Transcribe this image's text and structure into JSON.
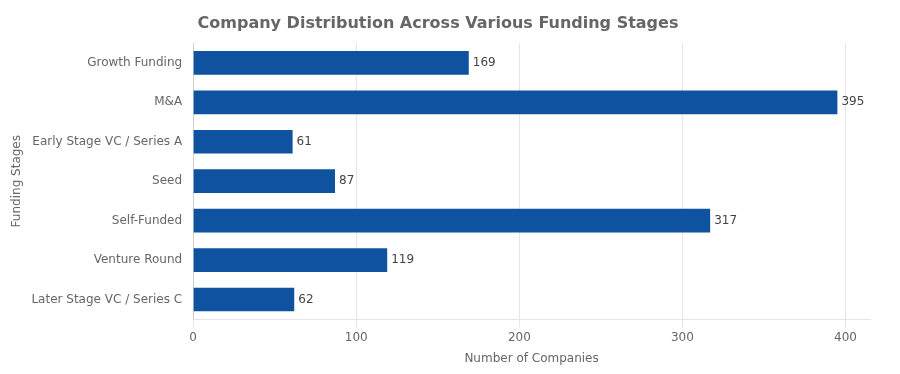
{
  "chart_data": {
    "type": "bar",
    "orientation": "horizontal",
    "title": "Company Distribution Across Various Funding Stages",
    "xlabel": "Number of Companies",
    "ylabel": "Funding Stages",
    "categories": [
      "Growth Funding",
      "M&A",
      "Early Stage VC / Series A",
      "Seed",
      "Self-Funded",
      "Venture Round",
      "Later Stage VC / Series C"
    ],
    "values": [
      169,
      395,
      61,
      87,
      317,
      119,
      62
    ],
    "color": "#0e52a0",
    "xlim": [
      0,
      415
    ],
    "xticks": [
      0,
      100,
      200,
      300,
      400
    ],
    "grid": true,
    "data_labels": true
  }
}
